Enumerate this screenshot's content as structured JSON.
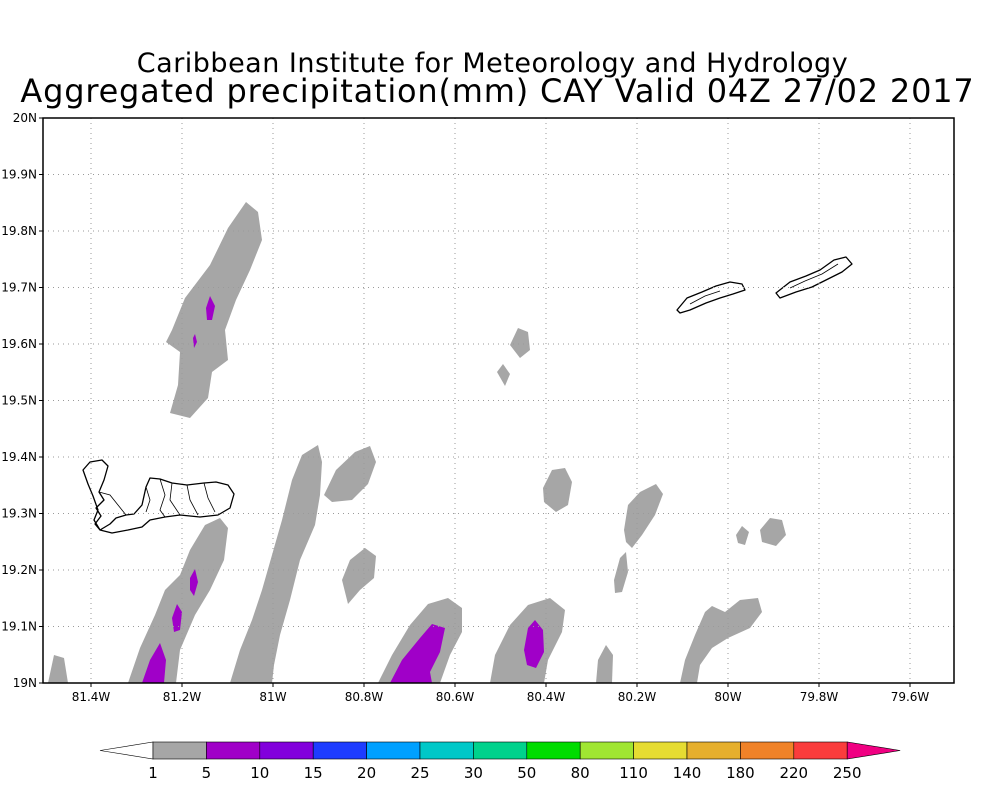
{
  "title": "Caribbean Institute for Meteorology and Hydrology",
  "subtitle": "Aggregated precipitation(mm) CAY Valid 04Z 27/02 2017",
  "y_ticks": [
    "19N",
    "19.1N",
    "19.2N",
    "19.3N",
    "19.4N",
    "19.5N",
    "19.6N",
    "19.7N",
    "19.8N",
    "19.9N",
    "20N"
  ],
  "x_ticks": [
    "81.4W",
    "81.2W",
    "81W",
    "80.8W",
    "80.6W",
    "80.4W",
    "80.2W",
    "80W",
    "79.8W",
    "79.6W"
  ],
  "colorbar": {
    "labels": [
      "1",
      "5",
      "10",
      "15",
      "20",
      "25",
      "30",
      "50",
      "80",
      "110",
      "140",
      "180",
      "220",
      "250"
    ],
    "colors": [
      "#a6a6a6",
      "#a000c8",
      "#8200dc",
      "#1e3cff",
      "#00a0ff",
      "#00c8c8",
      "#00d28c",
      "#00dc00",
      "#a0e632",
      "#e6dc32",
      "#e6af2d",
      "#f08228",
      "#fa3c3c"
    ],
    "under_color": "#ffffff",
    "over_color": "#f00082"
  },
  "colors": {
    "precip_light": "#a6a6a6",
    "precip_purple": "#a000c8",
    "land_outline": "#000000",
    "grid": "#9a9a9a"
  }
}
